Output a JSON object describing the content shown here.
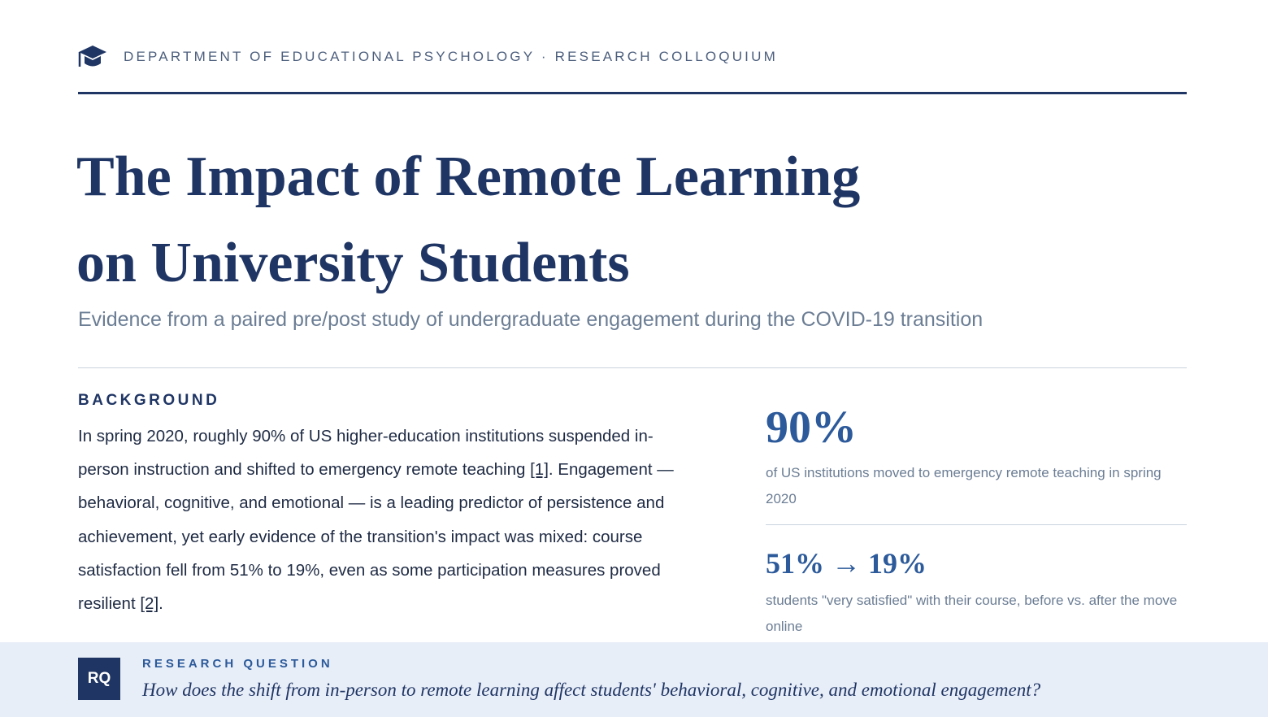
{
  "header": {
    "label": "DEPARTMENT OF EDUCATIONAL PSYCHOLOGY · RESEARCH COLLOQUIUM"
  },
  "title": {
    "line1": "The Impact of Remote Learning",
    "line2": "on University Students"
  },
  "subtitle": "Evidence from a paired pre/post study of undergraduate engagement during the COVID-19 transition",
  "background": {
    "heading": "BACKGROUND",
    "paragraph": [
      "In spring 2020, roughly 90% of US higher-education institutions suspended in-person instruction and shifted to emergency remote teaching ",
      "[1]",
      ". Engagement — behavioral, cognitive, and emotional — is a leading predictor of persistence and achievement, yet early evidence of the transition's impact was mixed: course satisfaction fell from 51% to 19%, even as some participation measures proved resilient ",
      "[2]",
      "."
    ]
  },
  "stats": [
    {
      "value": "90%",
      "caption": "of US institutions moved to emergency remote teaching in spring 2020"
    },
    {
      "value": "51% → 19%",
      "caption": "students \"very satisfied\" with their course, before vs. after the move online"
    }
  ],
  "research_question": {
    "badge": "RQ",
    "label": "RESEARCH QUESTION",
    "question": "How does the shift from in-person to remote learning affect students' behavioral, cognitive, and emotional engagement?"
  }
}
